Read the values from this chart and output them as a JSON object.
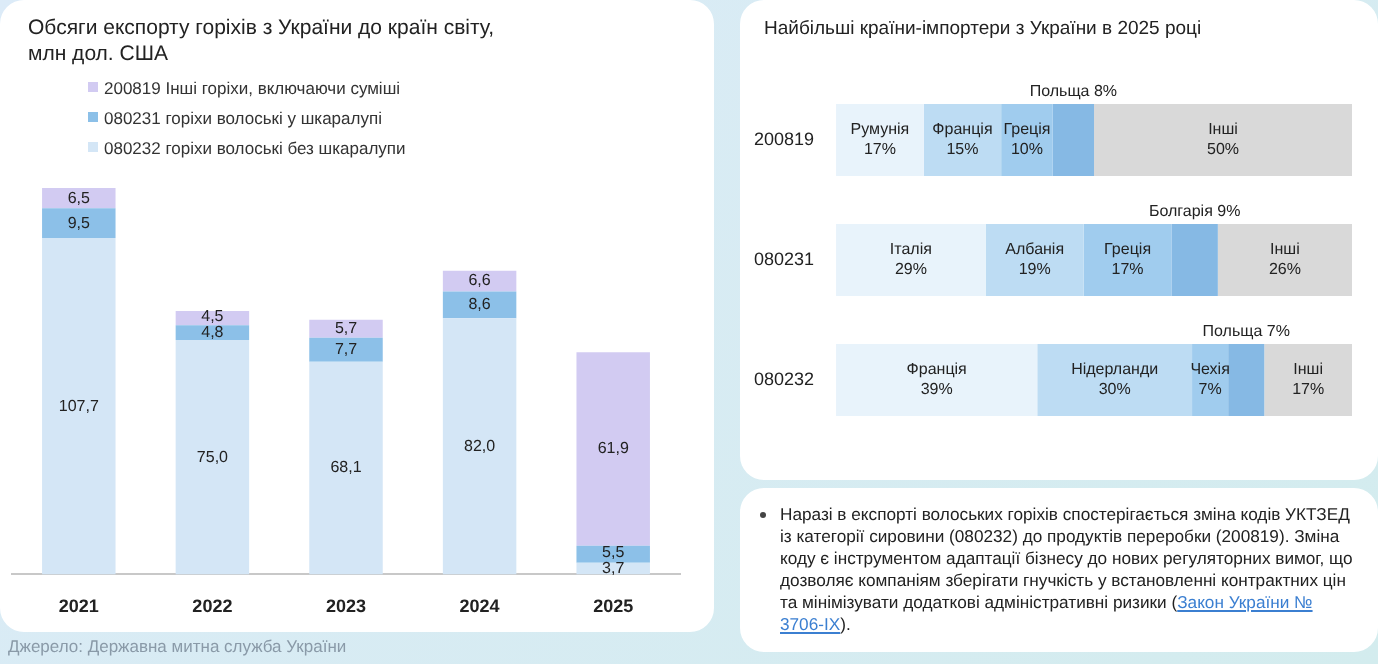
{
  "chart_data": [
    {
      "type": "bar",
      "stacked": true,
      "title": "Обсяги експорту горіхів з України до країн світу, млн дол. США",
      "categories": [
        "2021",
        "2022",
        "2023",
        "2024",
        "2025"
      ],
      "legend": "top left",
      "tick_labels": "x",
      "annotations": [
        "Джерело: Державна митна служба України"
      ],
      "series": [
        {
          "name": "080232 горіхи волоські без шкаралупи",
          "color": "#d4e6f6",
          "values": [
            107.7,
            75.0,
            68.1,
            82.0,
            3.7
          ],
          "value_labels": [
            "107,7",
            "75,0",
            "68,1",
            "82,0",
            "3,7"
          ]
        },
        {
          "name": "080231 горіхи волоські у шкаралупі",
          "color": "#8cc0e8",
          "values": [
            9.5,
            4.8,
            7.7,
            8.6,
            5.5
          ],
          "value_labels": [
            "9,5",
            "4,8",
            "7,7",
            "8,6",
            "5,5"
          ]
        },
        {
          "name": "200819 Інші горіхи, включаючи суміші",
          "color": "#d2cbf2",
          "values": [
            6.5,
            4.5,
            5.7,
            6.6,
            61.9
          ],
          "value_labels": [
            "6,5",
            "4,5",
            "5,7",
            "6,6",
            "61,9"
          ]
        }
      ]
    },
    {
      "type": "bar",
      "stacked": true,
      "orientation": "horizontal",
      "title": "Найбільші країни-імпортери з України в 2025 році",
      "categories": [
        "200819",
        "080231",
        "080232"
      ],
      "tick_labels": "y",
      "series": [
        {
          "color": "#e8f3fb",
          "values": [
            17,
            29,
            39
          ],
          "value_labels": [
            "Румунія 17%",
            "Італія 29%",
            "Франція 39%"
          ]
        },
        {
          "color": "#bddcf3",
          "values": [
            15,
            19,
            30
          ],
          "value_labels": [
            "Франція 15%",
            "Албанія 19%",
            "Нідерланди 30%"
          ]
        },
        {
          "color": "#a0ccee",
          "values": [
            10,
            17,
            7
          ],
          "value_labels": [
            "Греція 10%",
            "Греція 17%",
            "Чехія 7%"
          ]
        },
        {
          "color": "#86b9e4",
          "values": [
            8,
            9,
            7
          ],
          "value_labels": [
            "Польща 8%",
            "Болгарія 9%",
            "Польща 7%"
          ]
        },
        {
          "color": "#d9d9d9",
          "values": [
            50,
            26,
            17
          ],
          "value_labels": [
            "Інші 50%",
            "Інші 26%",
            "Інші 17%"
          ]
        }
      ]
    },
    {
      "type": "other",
      "annotations": [
        "Наразі в експорті волоських горіхів спостерігається зміна кодів УКТЗЕД  із категорії сировини (080232) до продуктів переробки (200819). Зміна коду є інструментом адаптації бізнесу до нових регуляторних вимог, що дозволяє компаніям зберігати гнучкість у встановленні контрактних цін та мінімізувати додаткові адміністративні ризики (",
        "Закон України № 3706-IX",
        "). "
      ]
    }
  ]
}
